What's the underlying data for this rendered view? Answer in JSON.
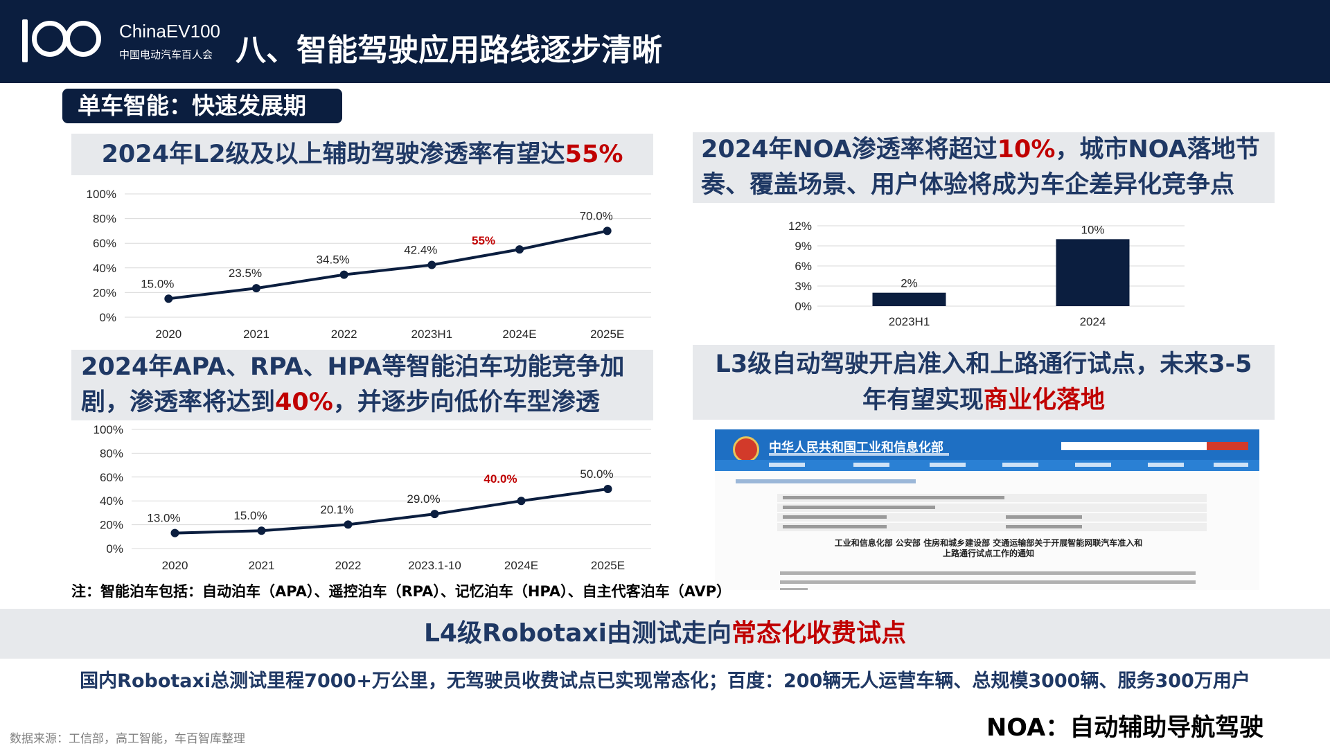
{
  "header": {
    "logo_text": "ChinaEV100",
    "logo_subtext": "中国电动汽车百人会",
    "title": "八、智能驾驶应用路线逐步清晰"
  },
  "section_tag": "单车智能：快速发展期",
  "panel_l2": {
    "title_prefix": "2024年L2级及以上辅助驾驶渗透率有望达",
    "title_highlight": "55%"
  },
  "panel_noa": {
    "title_line1_a": "2024年NOA渗透率将超过",
    "title_line1_highlight": "10%",
    "title_line1_b": "，城市NOA落地节",
    "title_line2": "奏、覆盖场景、用户体验将成为车企差异化竞争点"
  },
  "panel_parking": {
    "title_line1": "2024年APA、RPA、HPA等智能泊车功能竞争加",
    "title_line2_a": "剧，渗透率将达到",
    "title_line2_highlight": "40%",
    "title_line2_b": "，并逐步向低价车型渗透"
  },
  "panel_l3": {
    "title_line1": "L3级自动驾驶开启准入和上路通行试点，未来3-5",
    "title_line2_a": "年有望实现",
    "title_line2_highlight": "商业化落地",
    "doc_org": "中华人民共和国工业和信息化部",
    "doc_heading_line1": "工业和信息化部 公安部 住房和城乡建设部 交通运输部关于开展智能网联汽车准入和",
    "doc_heading_line2": "上路通行试点工作的通知"
  },
  "chart_data": [
    {
      "type": "line",
      "categories": [
        "2020",
        "2021",
        "2022",
        "2023H1",
        "2024E",
        "2025E"
      ],
      "values": [
        15.0,
        23.5,
        34.5,
        42.4,
        55.0,
        70.0
      ],
      "labels": [
        "15.0%",
        "23.5%",
        "34.5%",
        "42.4%",
        "55%",
        "70.0%"
      ],
      "highlight_index": 4,
      "yticks": [
        "0%",
        "20%",
        "40%",
        "60%",
        "80%",
        "100%"
      ],
      "ylim": [
        0,
        100
      ],
      "grid": true,
      "color": "#0b1e3f",
      "highlight_color": "#c00000"
    },
    {
      "type": "bar",
      "categories": [
        "2023H1",
        "2024"
      ],
      "values": [
        2,
        10
      ],
      "labels": [
        "2%",
        "10%"
      ],
      "yticks": [
        "0%",
        "3%",
        "6%",
        "9%",
        "12%"
      ],
      "ylim": [
        0,
        12
      ],
      "grid": true,
      "color": "#0b1e3f"
    },
    {
      "type": "line",
      "categories": [
        "2020",
        "2021",
        "2022",
        "2023.1-10",
        "2024E",
        "2025E"
      ],
      "values": [
        13.0,
        15.0,
        20.1,
        29.0,
        40.0,
        50.0
      ],
      "labels": [
        "13.0%",
        "15.0%",
        "20.1%",
        "29.0%",
        "40.0%",
        "50.0%"
      ],
      "highlight_index": 4,
      "yticks": [
        "0%",
        "20%",
        "40%",
        "60%",
        "80%",
        "100%"
      ],
      "ylim": [
        0,
        100
      ],
      "grid": true,
      "color": "#0b1e3f",
      "highlight_color": "#c00000"
    }
  ],
  "note": "注：智能泊车包括：自动泊车（APA）、遥控泊车（RPA）、记忆泊车（HPA）、自主代客泊车（AVP）",
  "l4": {
    "title_prefix": "L4级Robotaxi由测试走向",
    "title_highlight": "常态化收费试点",
    "detail": "国内Robotaxi总测试里程7000+万公里，无驾驶员收费试点已实现常态化；百度：200辆无人运营车辆、总规模3000辆、服务300万用户"
  },
  "source": "数据来源：工信部，高工智能，车百智库整理",
  "noa_definition": "NOA：自动辅助导航驾驶"
}
